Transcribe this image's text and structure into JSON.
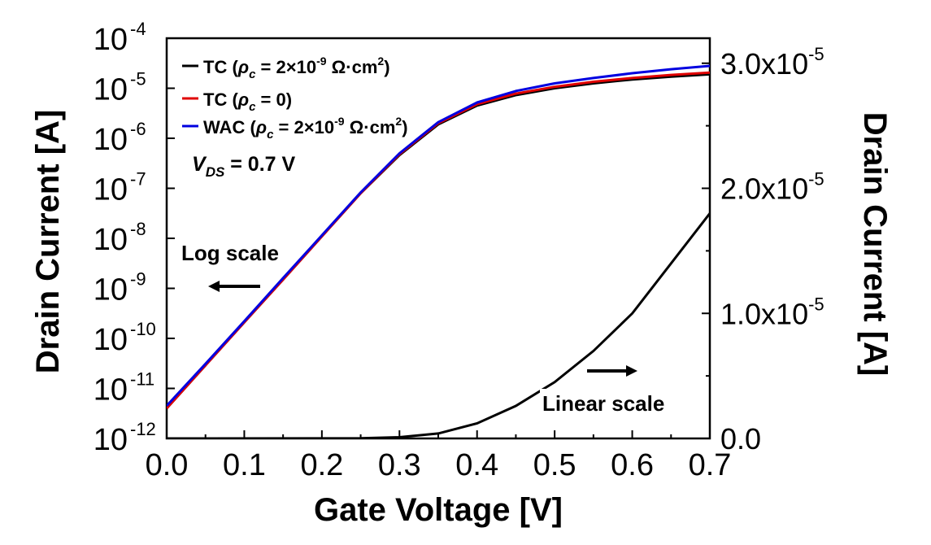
{
  "chart_data": {
    "type": "line",
    "xlabel": "Gate Voltage [V]",
    "ylabel_left": "Drain Current [A]",
    "ylabel_right": "Drain Current [A]",
    "x_ticks": [
      "0.0",
      "0.1",
      "0.2",
      "0.3",
      "0.4",
      "0.5",
      "0.6",
      "0.7"
    ],
    "y_left_ticks": [
      {
        "value": -12,
        "base": "10",
        "exp": "-12"
      },
      {
        "value": -11,
        "base": "10",
        "exp": "-11"
      },
      {
        "value": -10,
        "base": "10",
        "exp": "-10"
      },
      {
        "value": -9,
        "base": "10",
        "exp": "-9"
      },
      {
        "value": -8,
        "base": "10",
        "exp": "-8"
      },
      {
        "value": -7,
        "base": "10",
        "exp": "-7"
      },
      {
        "value": -6,
        "base": "10",
        "exp": "-6"
      },
      {
        "value": -5,
        "base": "10",
        "exp": "-5"
      },
      {
        "value": -4,
        "base": "10",
        "exp": "-4"
      }
    ],
    "y_right_ticks": [
      {
        "value": 0,
        "text": "0.0",
        "exp": ""
      },
      {
        "value": 1e-05,
        "text": "1.0x10",
        "exp": "-5"
      },
      {
        "value": 2e-05,
        "text": "2.0x10",
        "exp": "-5"
      },
      {
        "value": 3e-05,
        "text": "3.0x10",
        "exp": "-5"
      }
    ],
    "xlim": [
      0,
      0.7
    ],
    "ylim_left": [
      1e-12,
      0.0001
    ],
    "ylim_right": [
      0,
      3.2e-05
    ],
    "y_left_scale": "log",
    "y_right_scale": "linear",
    "grid": false,
    "legend_position": "top-left",
    "legend": [
      {
        "prefix": "TC (",
        "sym": "ρ",
        "sub": "c",
        "suffix": " = 2×10",
        "sup": "-9",
        "suffix2": " Ω·cm",
        "sup2": "2",
        "close": ")",
        "color": "#000000"
      },
      {
        "prefix": "TC (",
        "sym": "ρ",
        "sub": "c",
        "suffix": " = 0)",
        "sup": "",
        "suffix2": "",
        "sup2": "",
        "close": "",
        "color": "#e00000"
      },
      {
        "prefix": "WAC (",
        "sym": "ρ",
        "sub": "c",
        "suffix": " = 2×10",
        "sup": "-9",
        "suffix2": " Ω·cm",
        "sup2": "2",
        "close": ")",
        "color": "#0000e0"
      }
    ],
    "vds_label": {
      "main": "V",
      "sub": "DS",
      "rest": " = 0.7 V"
    },
    "annotations": {
      "log_scale": "Log scale",
      "linear_scale": "Linear scale"
    },
    "log_series": [
      {
        "name": "TC (ρc = 2×10-9 Ω·cm2)",
        "color": "#000000",
        "x": [
          0.0,
          0.05,
          0.1,
          0.15,
          0.2,
          0.25,
          0.3,
          0.35,
          0.4,
          0.45,
          0.5,
          0.55,
          0.6,
          0.65,
          0.7
        ],
        "y": [
          4e-12,
          2.9e-11,
          2.1e-10,
          1.5e-09,
          1.1e-08,
          8e-08,
          4.6e-07,
          1.9e-06,
          4.5e-06,
          7.3e-06,
          1e-05,
          1.25e-05,
          1.5e-05,
          1.7e-05,
          1.9e-05
        ]
      },
      {
        "name": "TC (ρc = 0)",
        "color": "#e00000",
        "x": [
          0.0,
          0.05,
          0.1,
          0.15,
          0.2,
          0.25,
          0.3,
          0.35,
          0.4,
          0.45,
          0.5,
          0.55,
          0.6,
          0.65,
          0.7
        ],
        "y": [
          4e-12,
          2.9e-11,
          2.1e-10,
          1.5e-09,
          1.1e-08,
          8e-08,
          4.8e-07,
          2e-06,
          4.8e-06,
          7.8e-06,
          1.07e-05,
          1.35e-05,
          1.6e-05,
          1.85e-05,
          2.05e-05
        ]
      },
      {
        "name": "WAC (ρc = 2×10-9 Ω·cm2)",
        "color": "#0000e0",
        "x": [
          0.0,
          0.05,
          0.1,
          0.15,
          0.2,
          0.25,
          0.3,
          0.35,
          0.4,
          0.45,
          0.5,
          0.55,
          0.6,
          0.65,
          0.7
        ],
        "y": [
          4.5e-12,
          3.1e-11,
          2.2e-10,
          1.6e-09,
          1.15e-08,
          8.3e-08,
          5e-07,
          2.1e-06,
          5.2e-06,
          8.8e-06,
          1.25e-05,
          1.6e-05,
          2e-05,
          2.4e-05,
          2.8e-05
        ]
      }
    ],
    "linear_series": [
      {
        "name": "TC (ρc = 2×10-9 Ω·cm2)",
        "color": "#000000",
        "x": [
          0.0,
          0.25,
          0.3,
          0.35,
          0.4,
          0.45,
          0.5,
          0.55,
          0.6,
          0.65,
          0.7
        ],
        "y": [
          0,
          1e-08,
          1e-07,
          4e-07,
          1.2e-06,
          2.6e-06,
          4.5e-06,
          7e-06,
          1e-05,
          1.4e-05,
          1.8e-05
        ]
      }
    ]
  }
}
